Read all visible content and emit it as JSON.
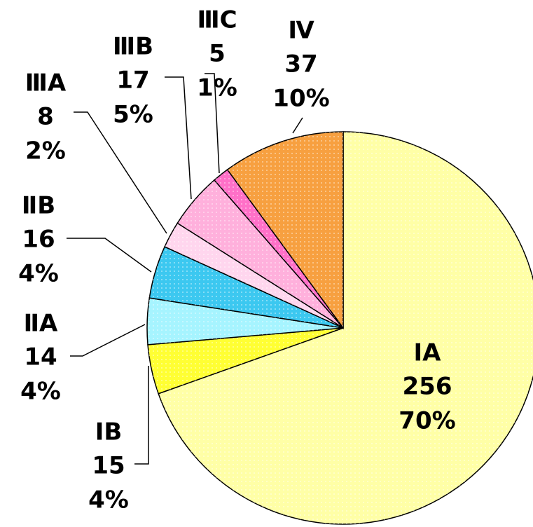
{
  "chart_data": {
    "type": "pie",
    "categories": [
      "ⅠA",
      "ⅠB",
      "ⅡA",
      "ⅡB",
      "ⅢA",
      "ⅢB",
      "ⅢC",
      "Ⅳ"
    ],
    "values": [
      256,
      15,
      14,
      16,
      8,
      17,
      5,
      37
    ],
    "percent_labels": [
      "70%",
      "4%",
      "4%",
      "4%",
      "2%",
      "5%",
      "1%",
      "10%"
    ],
    "colors": [
      "#ffffa6",
      "#ffff33",
      "#a6f4ff",
      "#3cc8f0",
      "#ffd6ee",
      "#ffb0dc",
      "#ff70c8",
      "#f7a040"
    ]
  }
}
